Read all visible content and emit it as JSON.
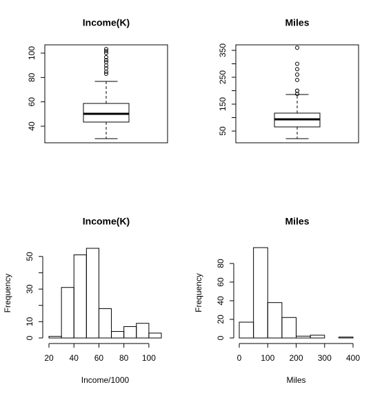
{
  "chart_data": [
    {
      "type": "box",
      "title": "Income(K)",
      "values": {
        "whisker_low": 29.8,
        "q1": 43.4,
        "median": 50.2,
        "q3": 58.7,
        "whisker_high": 76.8
      },
      "outliers": [
        103.3,
        101.7,
        100,
        96.6,
        94.3,
        92.6,
        89.8,
        87.5,
        84.7,
        83
      ],
      "ylim": [
        26.4,
        106.8
      ],
      "yticks": [
        40,
        60,
        80,
        100
      ]
    },
    {
      "type": "box",
      "title": "Miles",
      "values": {
        "whisker_low": 21.8,
        "q1": 65.4,
        "median": 93.6,
        "q3": 116.7,
        "whisker_high": 185.9
      },
      "outliers": [
        360,
        300,
        280,
        260,
        240,
        200,
        200,
        188
      ],
      "ylim": [
        6.4,
        370.5
      ],
      "yticks": [
        50,
        150,
        250,
        350
      ],
      "minor_yticks": [
        100,
        200,
        300
      ]
    },
    {
      "type": "histogram",
      "title": "Income(K)",
      "xlabel": "Income/1000",
      "ylabel": "Frequency",
      "bins": [
        20,
        30,
        40,
        50,
        60,
        70,
        80,
        90,
        100,
        110
      ],
      "values": [
        1,
        31,
        51,
        55,
        18,
        4,
        7,
        9,
        3
      ],
      "xlim": [
        20,
        110
      ],
      "ylim": [
        0,
        55
      ],
      "xticks": [
        20,
        40,
        60,
        80,
        100
      ],
      "yticks": [
        0,
        10,
        30,
        50
      ],
      "minor_yticks": [
        20,
        40
      ]
    },
    {
      "type": "histogram",
      "title": "Miles",
      "xlabel": "Miles",
      "ylabel": "Frequency",
      "bins": [
        0,
        50,
        100,
        150,
        200,
        250,
        300,
        350,
        400
      ],
      "values": [
        17,
        97,
        38,
        22,
        2,
        3,
        0,
        1
      ],
      "xlim": [
        0,
        400
      ],
      "ylim": [
        0,
        97
      ],
      "xticks": [
        0,
        100,
        200,
        300,
        400
      ],
      "yticks": [
        0,
        20,
        40,
        60,
        80
      ]
    }
  ]
}
